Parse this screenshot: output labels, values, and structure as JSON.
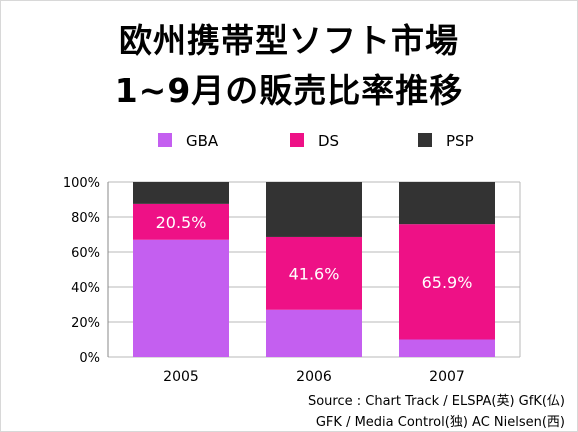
{
  "slide": {
    "title_line1": "欧州携帯型ソフト市場",
    "title_line2": "1~9月の販売比率推移",
    "source_line1": "Source : Chart Track / ELSPA(英) GfK(仏)",
    "source_line2": "GFK / Media Control(独) AC Nielsen(西)"
  },
  "chart_data": {
    "type": "bar",
    "stacked": true,
    "categories": [
      "2005",
      "2006",
      "2007"
    ],
    "series": [
      {
        "name": "GBA",
        "color": "#c45ff0",
        "values": [
          67,
          27,
          10
        ]
      },
      {
        "name": "DS",
        "color": "#ee1186",
        "values": [
          20.5,
          41.6,
          65.9
        ]
      },
      {
        "name": "PSP",
        "color": "#333333",
        "values": [
          12.5,
          31.4,
          24.1
        ]
      }
    ],
    "data_labels": [
      {
        "category": "2005",
        "series": "DS",
        "text": "20.5%"
      },
      {
        "category": "2006",
        "series": "DS",
        "text": "41.6%"
      },
      {
        "category": "2007",
        "series": "DS",
        "text": "65.9%"
      }
    ],
    "y_ticks": [
      "0%",
      "20%",
      "40%",
      "60%",
      "80%",
      "100%"
    ],
    "ylim": [
      0,
      100
    ],
    "legend_position": "top",
    "grid": true
  }
}
